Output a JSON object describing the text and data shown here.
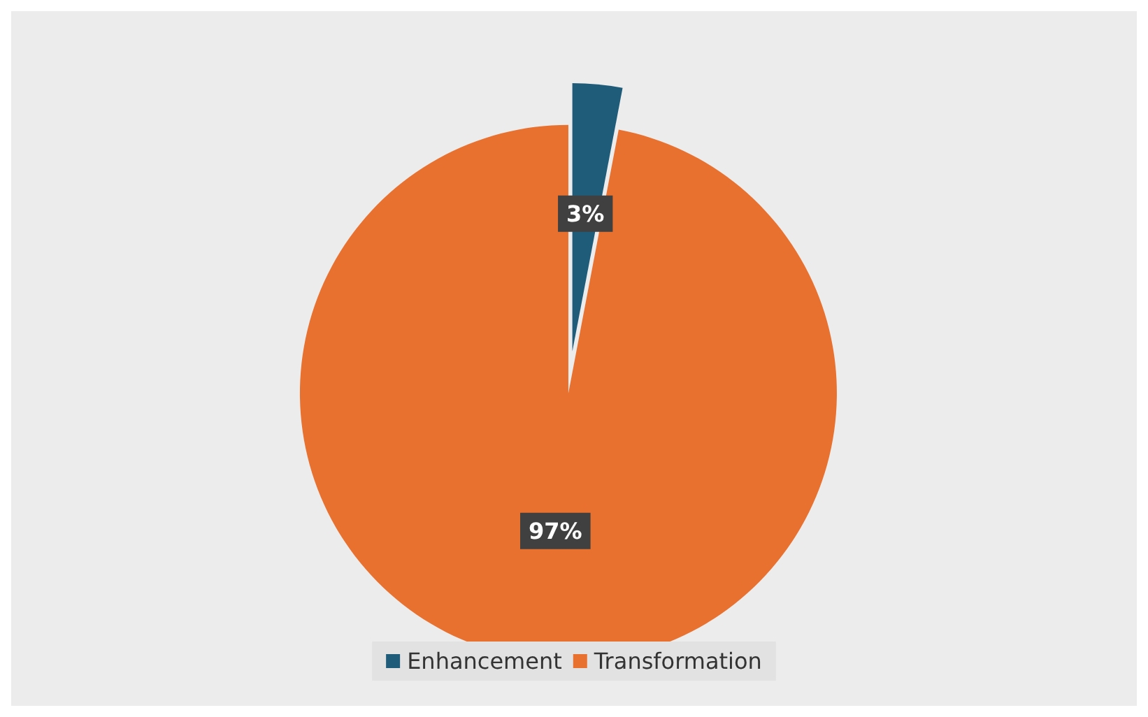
{
  "chart_data": {
    "type": "pie",
    "categories": [
      "Enhancement",
      "Transformation"
    ],
    "values": [
      3,
      97
    ],
    "colors": [
      "#1f5c7a",
      "#e9712f"
    ],
    "value_labels": [
      "3%",
      "97%"
    ],
    "legend": "bottom"
  }
}
